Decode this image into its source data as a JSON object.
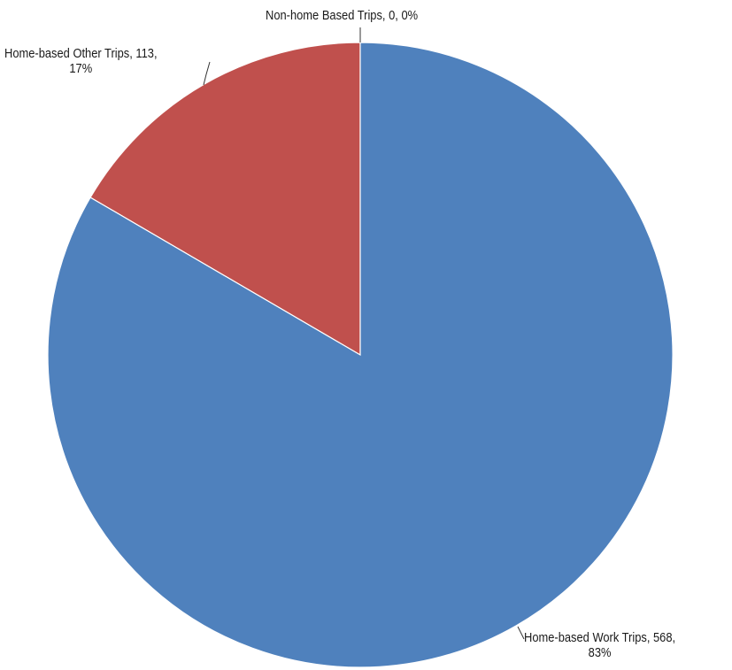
{
  "chart_data": {
    "type": "pie",
    "title": "",
    "slices": [
      {
        "name": "Non-home Based Trips",
        "value": 0,
        "percent": "0%",
        "color": "#9bbb59",
        "label_line1": "Non-home Based Trips, 0, 0%",
        "label_line2": ""
      },
      {
        "name": "Home-based Other Trips",
        "value": 113,
        "percent": "17%",
        "color": "#c0504d",
        "label_line1": "Home-based Other Trips, 113,",
        "label_line2": "17%"
      },
      {
        "name": "Home-based Work Trips",
        "value": 568,
        "percent": "83%",
        "color": "#4f81bd",
        "label_line1": "Home-based Work Trips, 568,",
        "label_line2": "83%"
      }
    ],
    "start_angle_deg": 0,
    "direction": "counterclockwise",
    "legend": "none",
    "data_labels": "outside with leader lines"
  }
}
